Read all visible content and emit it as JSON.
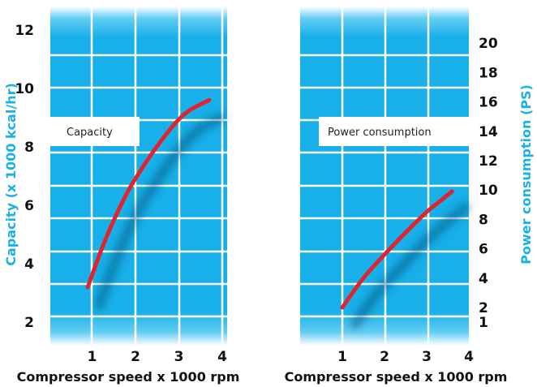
{
  "chart_data": [
    {
      "type": "line",
      "title": "",
      "xlabel": "Compressor speed x 1000 rpm",
      "ylabel": "Capacity (x 1000 kcal/hr)",
      "xlim": [
        0,
        4
      ],
      "ylim": [
        1.2,
        12.8
      ],
      "xticks": [
        "1",
        "2",
        "3",
        "4"
      ],
      "yticks": [
        "2",
        "4",
        "6",
        "8",
        "10",
        "12"
      ],
      "series": [
        {
          "name": "Capacity",
          "x": [
            0.9,
            1.3,
            1.8,
            2.3,
            2.8,
            3.2,
            3.7
          ],
          "y": [
            3.2,
            4.8,
            6.4,
            7.6,
            8.6,
            9.2,
            9.6
          ]
        }
      ],
      "grid": true,
      "colors": {
        "line": "#e0242e",
        "background": "#1cb4ea",
        "grid": "#ffffff"
      }
    },
    {
      "type": "line",
      "title": "",
      "xlabel": "Compressor speed x 1000 rpm",
      "ylabel": "Power consumption (PS)",
      "xlim": [
        0,
        4
      ],
      "ylim": [
        -0.6,
        22.5
      ],
      "yaxis_position": "right",
      "xticks": [
        "1",
        "2",
        "3",
        "4"
      ],
      "yticks": [
        "1",
        "2",
        "4",
        "6",
        "8",
        "10",
        "12",
        "14",
        "16",
        "18",
        "20"
      ],
      "series": [
        {
          "name": "Power consumption",
          "x": [
            1.0,
            1.5,
            2.0,
            2.5,
            3.0,
            3.3,
            3.6
          ],
          "y": [
            2.0,
            4.0,
            5.6,
            7.1,
            8.5,
            9.2,
            9.9
          ]
        }
      ],
      "grid": true,
      "colors": {
        "line": "#e0242e",
        "background": "#1cb4ea",
        "grid": "#ffffff"
      }
    }
  ]
}
